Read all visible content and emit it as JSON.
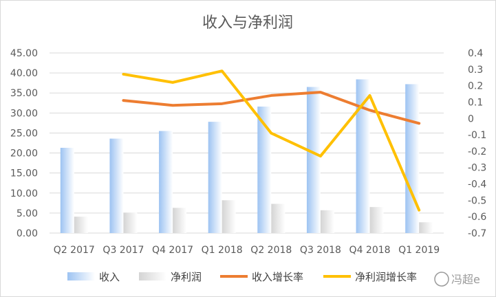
{
  "chart_data": {
    "type": "bar+line",
    "title": "收入与净利润",
    "categories": [
      "Q2 2017",
      "Q3 2017",
      "Q4 2017",
      "Q1 2018",
      "Q2 2018",
      "Q3 2018",
      "Q4 2018",
      "Q1 2019"
    ],
    "bar_series": [
      {
        "name": "收入",
        "axis": "left",
        "color": "#9DC3F2",
        "values": [
          21.3,
          23.6,
          25.5,
          27.8,
          31.6,
          36.5,
          38.4,
          37.2
        ]
      },
      {
        "name": "净利润",
        "axis": "left",
        "color": "#D4D4D4",
        "values": [
          4.1,
          5.1,
          6.3,
          8.2,
          7.3,
          5.7,
          6.5,
          2.7
        ]
      }
    ],
    "line_series": [
      {
        "name": "收入增长率",
        "axis": "right",
        "color": "#ED7D31",
        "values": [
          null,
          0.11,
          0.08,
          0.09,
          0.14,
          0.16,
          0.05,
          -0.03
        ]
      },
      {
        "name": "净利润增长率",
        "axis": "right",
        "color": "#FFC000",
        "values": [
          null,
          0.27,
          0.22,
          0.29,
          -0.09,
          -0.23,
          0.14,
          -0.56
        ]
      }
    ],
    "left_axis": {
      "min": 0,
      "max": 45,
      "step": 5,
      "labels": [
        "0.00",
        "5.00",
        "10.00",
        "15.00",
        "20.00",
        "25.00",
        "30.00",
        "35.00",
        "40.00",
        "45.00"
      ]
    },
    "right_axis": {
      "min": -0.7,
      "max": 0.4,
      "step": 0.1,
      "labels": [
        "-0.7",
        "-0.6",
        "-0.5",
        "-0.4",
        "-0.3",
        "-0.2",
        "-0.1",
        "0",
        "0.1",
        "0.2",
        "0.3",
        "0.4"
      ]
    },
    "grid": true,
    "legend_position": "bottom"
  },
  "watermark": "冯超e"
}
